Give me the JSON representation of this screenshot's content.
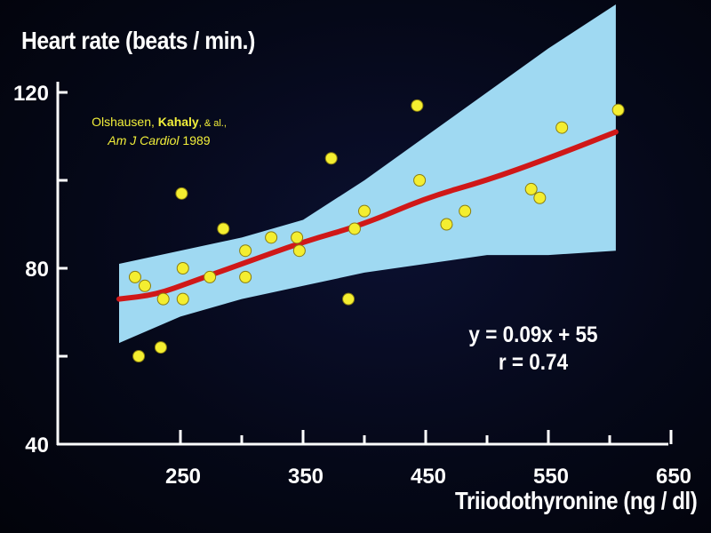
{
  "chart_data": {
    "type": "scatter",
    "title": "",
    "ylabel": "Heart rate (beats / min.)",
    "xlabel": "Triiodothyronine (ng / dl)",
    "xlim": [
      150,
      650
    ],
    "ylim": [
      40,
      120
    ],
    "x_ticks": [
      250,
      350,
      450,
      550,
      650
    ],
    "x_minor_ticks": [
      300,
      400,
      500,
      600
    ],
    "y_ticks": [
      40,
      80,
      120
    ],
    "y_minor_ticks": [
      60,
      100
    ],
    "points": [
      {
        "x": 213,
        "y": 78
      },
      {
        "x": 216,
        "y": 60
      },
      {
        "x": 221,
        "y": 76
      },
      {
        "x": 234,
        "y": 62
      },
      {
        "x": 236,
        "y": 73
      },
      {
        "x": 251,
        "y": 97
      },
      {
        "x": 252,
        "y": 80
      },
      {
        "x": 252,
        "y": 73
      },
      {
        "x": 274,
        "y": 78
      },
      {
        "x": 285,
        "y": 89
      },
      {
        "x": 303,
        "y": 84
      },
      {
        "x": 303,
        "y": 78
      },
      {
        "x": 324,
        "y": 87
      },
      {
        "x": 345,
        "y": 87
      },
      {
        "x": 347,
        "y": 84
      },
      {
        "x": 373,
        "y": 105
      },
      {
        "x": 387,
        "y": 73
      },
      {
        "x": 392,
        "y": 89
      },
      {
        "x": 400,
        "y": 93
      },
      {
        "x": 443,
        "y": 117
      },
      {
        "x": 445,
        "y": 100
      },
      {
        "x": 467,
        "y": 90
      },
      {
        "x": 482,
        "y": 93
      },
      {
        "x": 536,
        "y": 98
      },
      {
        "x": 543,
        "y": 96
      },
      {
        "x": 561,
        "y": 112
      },
      {
        "x": 607,
        "y": 116
      }
    ],
    "regression": {
      "equation": "y = 0.09x + 55",
      "r": "r = 0.74",
      "curve": [
        [
          200,
          73
        ],
        [
          230,
          74
        ],
        [
          260,
          77
        ],
        [
          300,
          81
        ],
        [
          350,
          86
        ],
        [
          400,
          90
        ],
        [
          450,
          96
        ],
        [
          500,
          100
        ],
        [
          550,
          105
        ],
        [
          605,
          111
        ]
      ]
    },
    "confidence_band": {
      "upper": [
        [
          200,
          81
        ],
        [
          300,
          87
        ],
        [
          350,
          91
        ],
        [
          400,
          100
        ],
        [
          450,
          110
        ],
        [
          500,
          120
        ],
        [
          550,
          130
        ],
        [
          605,
          140
        ]
      ],
      "lower": [
        [
          200,
          63
        ],
        [
          250,
          69
        ],
        [
          300,
          73
        ],
        [
          350,
          76
        ],
        [
          400,
          79
        ],
        [
          450,
          81
        ],
        [
          500,
          83
        ],
        [
          550,
          83
        ],
        [
          605,
          84
        ]
      ]
    },
    "grid": false,
    "legend": "none",
    "colors": {
      "background": "#050818",
      "band": "#9fd9f2",
      "regression_line": "#d01818",
      "point_fill": "#f4ee30",
      "point_stroke": "#8a7e10",
      "axis": "#ffffff",
      "text": "#ffffff",
      "citation": "#f2ef3a"
    }
  },
  "citation": {
    "authors_prefix": "Olshausen, ",
    "author_bold": "Kahaly",
    "authors_suffix": ", & al.,",
    "journal": "Am J Cardiol",
    "year": " 1989"
  }
}
